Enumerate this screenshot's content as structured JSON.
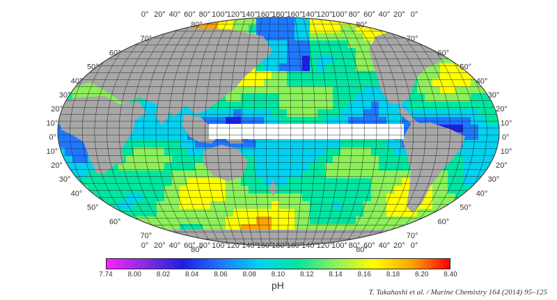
{
  "map": {
    "lon_labels": [
      "0°",
      "20°",
      "40°",
      "60°",
      "80°",
      "100°",
      "120°",
      "140°",
      "160°",
      "180°",
      "160°",
      "140°",
      "120°",
      "100°",
      "80°",
      "60°",
      "40°",
      "20°",
      "0°"
    ],
    "lat_labels_left": [
      "80°",
      "70°",
      "60°",
      "50°",
      "40°",
      "30°",
      "20°",
      "10°",
      "0°",
      "10°",
      "20°",
      "30°",
      "40°",
      "50°",
      "60°",
      "70°",
      "80°"
    ],
    "lat_labels_right": [
      "80°",
      "70°",
      "60°",
      "50°",
      "40°",
      "30°",
      "20°",
      "10°",
      "0°",
      "10°",
      "20°",
      "30°",
      "40°",
      "50°",
      "60°",
      "70°",
      "80°"
    ],
    "land_color": "#a8a8a8",
    "grid_color": "#222222",
    "colorscale": [
      "#ff22ff",
      "#8a2be2",
      "#1e1ee6",
      "#1e78ff",
      "#00d2f0",
      "#00e6a0",
      "#8cf05a",
      "#ffff00",
      "#ffa500",
      "#ff0000"
    ]
  },
  "legend": {
    "ticks": [
      "7.74",
      "8.00",
      "8.02",
      "8.04",
      "8.06",
      "8.08",
      "8.10",
      "8.12",
      "8.14",
      "8.16",
      "8.18",
      "8.20",
      "8.40"
    ],
    "label": "pH"
  },
  "citation": "T. Takahashi et al. / Marine Chemistry 164 (2014) 95–125"
}
